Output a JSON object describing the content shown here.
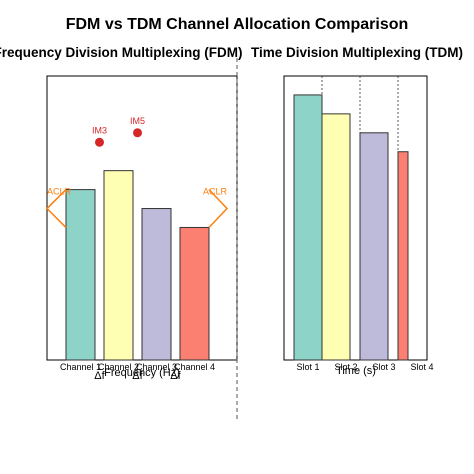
{
  "title": "FDM vs TDM Channel Allocation Comparison",
  "colors": {
    "set": [
      "#8dd3c7",
      "#ffffb3",
      "#bebada",
      "#fb8072"
    ],
    "im_marker": "#d62728",
    "aclr": "#ff7f0e",
    "divider": "#555555"
  },
  "chart_data": [
    {
      "type": "bar",
      "title": "Frequency Division Multiplexing (FDM)",
      "xlabel": "Frequency (Hz)",
      "ylabel": "",
      "categories": [
        "Channel 1",
        "Channel 2",
        "Channel 3",
        "Channel 4"
      ],
      "values": [
        0.9,
        1.0,
        0.8,
        0.7
      ],
      "ylim": [
        0,
        1.5
      ],
      "grid": false,
      "annotations": {
        "intermod": [
          {
            "label": "IM3",
            "x": 1.5,
            "y": 1.15
          },
          {
            "label": "IM5",
            "x": 2.5,
            "y": 1.2
          }
        ],
        "aclr": [
          {
            "label": "ACLR",
            "side": "left",
            "y": 0.8
          },
          {
            "label": "ACLR",
            "side": "right",
            "y": 0.8
          }
        ],
        "guard_band_label": "Δf",
        "guard_band_count": 3
      }
    },
    {
      "type": "bar",
      "title": "Time Division Multiplexing (TDM)",
      "xlabel": "Time (s)",
      "ylabel": "",
      "categories": [
        "Slot 1",
        "Slot 2",
        "Slot 3",
        "Slot 4"
      ],
      "values": [
        1.4,
        1.3,
        1.2,
        1.1
      ],
      "ylim": [
        0,
        1.5
      ],
      "grid": false,
      "slot_separators": true
    }
  ]
}
